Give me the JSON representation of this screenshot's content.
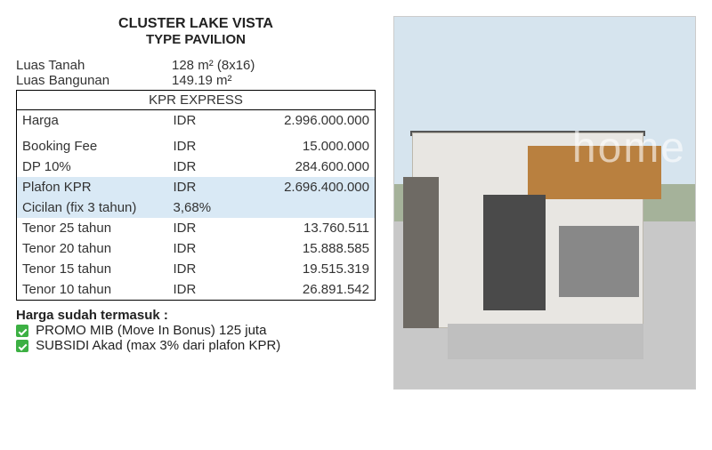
{
  "header": {
    "title1": "CLUSTER LAKE VISTA",
    "title2": "TYPE PAVILION"
  },
  "specs": {
    "land_label": "Luas Tanah",
    "land_value": "128 m² (8x16)",
    "building_label": "Luas Bangunan",
    "building_value": "149.19 m²"
  },
  "table": {
    "header": "KPR EXPRESS",
    "currency": "IDR",
    "rows": [
      {
        "label": "Harga",
        "cur": "IDR",
        "value": "2.996.000.000",
        "hl": false
      },
      {
        "label": "Booking Fee",
        "cur": "IDR",
        "value": "15.000.000",
        "hl": false
      },
      {
        "label": "DP 10%",
        "cur": "IDR",
        "value": "284.600.000",
        "hl": false
      },
      {
        "label": "Plafon KPR",
        "cur": "IDR",
        "value": "2.696.400.000",
        "hl": true
      },
      {
        "label": "Cicilan (fix 3 tahun)",
        "cur": "3,68%",
        "value": "",
        "hl": true
      },
      {
        "label": "Tenor 25 tahun",
        "cur": "IDR",
        "value": "13.760.511",
        "hl": false
      },
      {
        "label": "Tenor 20 tahun",
        "cur": "IDR",
        "value": "15.888.585",
        "hl": false
      },
      {
        "label": "Tenor 15 tahun",
        "cur": "IDR",
        "value": "19.515.319",
        "hl": false
      },
      {
        "label": "Tenor 10 tahun",
        "cur": "IDR",
        "value": "26.891.542",
        "hl": false
      }
    ]
  },
  "footer": {
    "heading": "Harga sudah termasuk :",
    "items": [
      "PROMO MIB (Move In Bonus) 125 juta",
      "SUBSIDI Akad (max 3% dari plafon KPR)"
    ]
  },
  "watermark": "home",
  "colors": {
    "highlight_row": "#d9e9f5",
    "check_bg": "#3cb043",
    "border": "#000000",
    "text": "#333333"
  }
}
